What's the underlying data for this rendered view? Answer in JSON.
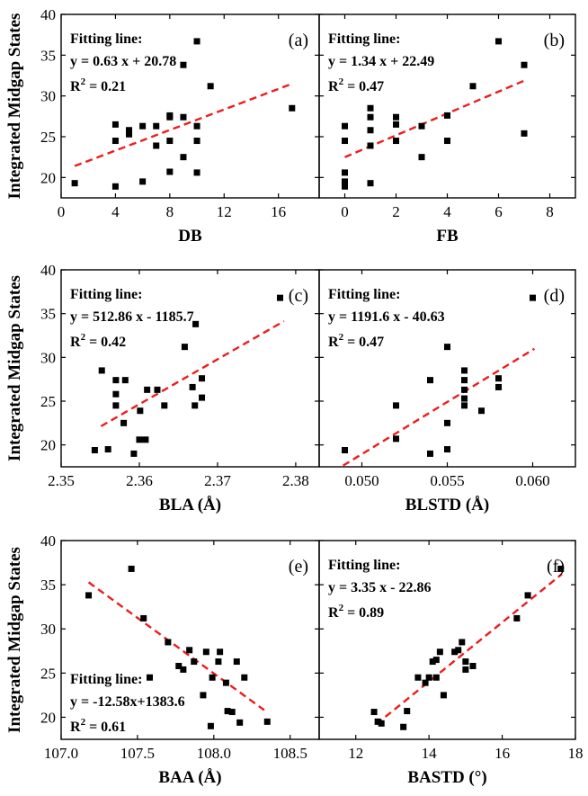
{
  "chart_data": [
    {
      "id": "a",
      "type": "scatter",
      "panel_label": "(a)",
      "xlabel": "DB",
      "xlim": [
        0,
        19
      ],
      "ylim": [
        17.5,
        40
      ],
      "xticks": [
        0,
        4,
        8,
        12,
        16
      ],
      "xtick_labels": [
        "0",
        "4",
        "8",
        "12",
        "16"
      ],
      "yticks": [
        20,
        25,
        30,
        35,
        40
      ],
      "ytick_labels": [
        "20",
        "25",
        "30",
        "35",
        "40"
      ],
      "fit": {
        "title": "Fitting line:",
        "equation": "y = 0.63 x + 20.78",
        "r2_prefix": "R",
        "r2_sup": "2",
        "r2_value": " = 0.21",
        "slope": 0.63,
        "intercept": 20.78,
        "x_range": [
          1,
          17
        ],
        "text_position": "top-left"
      },
      "points": [
        [
          1,
          19.3
        ],
        [
          4,
          18.9
        ],
        [
          4,
          24.5
        ],
        [
          4,
          26.5
        ],
        [
          5,
          25.3
        ],
        [
          5,
          25.8
        ],
        [
          6,
          19.5
        ],
        [
          6,
          26.3
        ],
        [
          7,
          23.9
        ],
        [
          7,
          26.3
        ],
        [
          8,
          20.7
        ],
        [
          8,
          24.5
        ],
        [
          8,
          27.4
        ],
        [
          8,
          27.6
        ],
        [
          9,
          22.5
        ],
        [
          9,
          27.4
        ],
        [
          9,
          33.8
        ],
        [
          10,
          20.6
        ],
        [
          10,
          24.5
        ],
        [
          10,
          26.3
        ],
        [
          10,
          36.7
        ],
        [
          11,
          31.2
        ],
        [
          17,
          28.5
        ]
      ]
    },
    {
      "id": "b",
      "type": "scatter",
      "panel_label": "(b)",
      "xlabel": "FB",
      "xlim": [
        -1,
        9
      ],
      "ylim": [
        17.5,
        40
      ],
      "xticks": [
        0,
        2,
        4,
        6,
        8
      ],
      "xtick_labels": [
        "0",
        "2",
        "4",
        "6",
        "8"
      ],
      "yticks": [
        20,
        25,
        30,
        35,
        40
      ],
      "ytick_labels": [
        "",
        "",
        "",
        "",
        ""
      ],
      "fit": {
        "title": "Fitting line:",
        "equation": "y = 1.34 x + 22.49",
        "r2_prefix": "R",
        "r2_sup": "2",
        "r2_value": " = 0.47",
        "slope": 1.34,
        "intercept": 22.49,
        "x_range": [
          0,
          7
        ],
        "text_position": "top-left"
      },
      "points": [
        [
          0,
          18.9
        ],
        [
          0,
          19.3
        ],
        [
          0,
          19.5
        ],
        [
          0,
          20.6
        ],
        [
          0,
          24.5
        ],
        [
          0,
          26.3
        ],
        [
          1,
          19.3
        ],
        [
          1,
          23.9
        ],
        [
          1,
          25.8
        ],
        [
          1,
          27.4
        ],
        [
          1,
          28.5
        ],
        [
          2,
          24.5
        ],
        [
          2,
          26.5
        ],
        [
          2,
          27.4
        ],
        [
          3,
          22.5
        ],
        [
          3,
          26.3
        ],
        [
          4,
          24.5
        ],
        [
          4,
          27.6
        ],
        [
          5,
          31.2
        ],
        [
          6,
          36.7
        ],
        [
          7,
          25.4
        ],
        [
          7,
          33.8
        ]
      ]
    },
    {
      "id": "c",
      "type": "scatter",
      "panel_label": "(c)",
      "xlabel": "BLA (Å)",
      "xlim": [
        2.35,
        2.383
      ],
      "ylim": [
        17.5,
        40
      ],
      "xticks": [
        2.35,
        2.36,
        2.37,
        2.38
      ],
      "xtick_labels": [
        "2.35",
        "2.36",
        "2.37",
        "2.38"
      ],
      "yticks": [
        20,
        25,
        30,
        35,
        40
      ],
      "ytick_labels": [
        "20",
        "25",
        "30",
        "35",
        "40"
      ],
      "fit": {
        "title": "Fitting line:",
        "equation": "y = 512.86 x - 1185.7",
        "r2_prefix": "R",
        "r2_sup": "2",
        "r2_value": " = 0.42",
        "slope": 512.86,
        "intercept": -1185.7,
        "x_range": [
          2.3551,
          2.3785
        ],
        "text_position": "top-left"
      },
      "points": [
        [
          2.3543,
          19.4
        ],
        [
          2.3552,
          28.5
        ],
        [
          2.356,
          19.5
        ],
        [
          2.357,
          24.5
        ],
        [
          2.357,
          25.8
        ],
        [
          2.357,
          27.4
        ],
        [
          2.358,
          22.5
        ],
        [
          2.3582,
          27.4
        ],
        [
          2.3593,
          19.0
        ],
        [
          2.36,
          20.6
        ],
        [
          2.3601,
          23.9
        ],
        [
          2.3608,
          20.6
        ],
        [
          2.361,
          26.3
        ],
        [
          2.3623,
          26.3
        ],
        [
          2.3632,
          24.5
        ],
        [
          2.3658,
          31.2
        ],
        [
          2.3668,
          26.6
        ],
        [
          2.3671,
          24.5
        ],
        [
          2.3672,
          33.8
        ],
        [
          2.368,
          27.6
        ],
        [
          2.368,
          25.4
        ],
        [
          2.378,
          36.8
        ]
      ]
    },
    {
      "id": "d",
      "type": "scatter",
      "panel_label": "(d)",
      "xlabel": "BLSTD (Å)",
      "xlim": [
        0.0475,
        0.0625
      ],
      "ylim": [
        17.5,
        40
      ],
      "xticks": [
        0.05,
        0.055,
        0.06
      ],
      "xtick_labels": [
        "0.050",
        "0.055",
        "0.060"
      ],
      "yticks": [
        20,
        25,
        30,
        35,
        40
      ],
      "ytick_labels": [
        "",
        "",
        "",
        "",
        ""
      ],
      "fit": {
        "title": "Fitting line:",
        "equation": "y = 1191.6 x - 40.63",
        "r2_prefix": "R",
        "r2_sup": "2",
        "r2_value": " = 0.47",
        "slope": 1191.6,
        "intercept": -40.63,
        "x_range": [
          0.0489,
          0.0601
        ],
        "text_position": "top-left"
      },
      "points": [
        [
          0.049,
          19.4
        ],
        [
          0.052,
          24.5
        ],
        [
          0.052,
          20.7
        ],
        [
          0.054,
          27.4
        ],
        [
          0.054,
          19.0
        ],
        [
          0.055,
          31.2
        ],
        [
          0.055,
          22.5
        ],
        [
          0.055,
          19.5
        ],
        [
          0.056,
          24.5
        ],
        [
          0.056,
          25.3
        ],
        [
          0.056,
          26.3
        ],
        [
          0.056,
          27.4
        ],
        [
          0.056,
          28.5
        ],
        [
          0.057,
          23.9
        ],
        [
          0.058,
          26.6
        ],
        [
          0.058,
          27.6
        ],
        [
          0.06,
          36.8
        ]
      ]
    },
    {
      "id": "e",
      "type": "scatter",
      "panel_label": "(e)",
      "xlabel": "BAA (Å)",
      "xlim": [
        107.0,
        108.69
      ],
      "ylim": [
        17.5,
        40
      ],
      "xticks": [
        107.0,
        107.5,
        108.0,
        108.5
      ],
      "xtick_labels": [
        "107.0",
        "107.5",
        "108.0",
        "108.5"
      ],
      "yticks": [
        20,
        25,
        30,
        35,
        40
      ],
      "ytick_labels": [
        "20",
        "25",
        "30",
        "35",
        "40"
      ],
      "fit": {
        "title": "Fitting line:",
        "equation": "y = -12.58x+1383.6",
        "r2_prefix": "R",
        "r2_sup": "2",
        "r2_value": " = 0.61",
        "slope": -12.58,
        "intercept": 1383.6,
        "x_range": [
          107.18,
          108.33
        ],
        "text_position": "bottom-left"
      },
      "points": [
        [
          107.18,
          33.8
        ],
        [
          107.46,
          36.8
        ],
        [
          107.54,
          31.2
        ],
        [
          107.58,
          24.5
        ],
        [
          107.7,
          28.5
        ],
        [
          107.77,
          25.8
        ],
        [
          107.8,
          25.4
        ],
        [
          107.84,
          27.6
        ],
        [
          107.87,
          26.3
        ],
        [
          107.93,
          22.5
        ],
        [
          107.95,
          27.4
        ],
        [
          107.98,
          19.0
        ],
        [
          107.99,
          24.5
        ],
        [
          108.03,
          26.3
        ],
        [
          108.04,
          27.4
        ],
        [
          108.08,
          23.9
        ],
        [
          108.09,
          20.7
        ],
        [
          108.12,
          20.6
        ],
        [
          108.15,
          26.3
        ],
        [
          108.17,
          19.4
        ],
        [
          108.2,
          24.5
        ],
        [
          108.35,
          19.5
        ]
      ]
    },
    {
      "id": "f",
      "type": "scatter",
      "panel_label": "(f)",
      "xlabel": "BASTD (°)",
      "xlim": [
        11,
        18
      ],
      "ylim": [
        17.5,
        40
      ],
      "xticks": [
        12,
        14,
        16,
        18
      ],
      "xtick_labels": [
        "12",
        "14",
        "16",
        "18"
      ],
      "yticks": [
        20,
        25,
        30,
        35,
        40
      ],
      "ytick_labels": [
        "",
        "",
        "",
        "",
        ""
      ],
      "fit": {
        "title": "Fitting line:",
        "equation": "y = 3.35 x - 22.86",
        "r2_prefix": "R",
        "r2_sup": "2",
        "r2_value": " = 0.89",
        "slope": 3.35,
        "intercept": -22.86,
        "x_range": [
          12.56,
          17.63
        ],
        "text_position": "top-left"
      },
      "points": [
        [
          12.5,
          20.6
        ],
        [
          12.6,
          19.5
        ],
        [
          12.7,
          19.3
        ],
        [
          13.3,
          18.9
        ],
        [
          13.4,
          20.7
        ],
        [
          13.7,
          24.5
        ],
        [
          13.9,
          23.9
        ],
        [
          14.0,
          24.5
        ],
        [
          14.1,
          26.3
        ],
        [
          14.2,
          24.5
        ],
        [
          14.2,
          26.5
        ],
        [
          14.3,
          27.4
        ],
        [
          14.4,
          22.5
        ],
        [
          14.7,
          27.4
        ],
        [
          14.8,
          27.6
        ],
        [
          14.9,
          28.5
        ],
        [
          15.0,
          25.4
        ],
        [
          15.0,
          26.3
        ],
        [
          15.2,
          25.8
        ],
        [
          16.4,
          31.2
        ],
        [
          16.7,
          33.8
        ],
        [
          17.6,
          36.8
        ]
      ]
    }
  ],
  "shared_ylabel": "Integrated Midgap States",
  "colors": {
    "fit_line": "#ee1c1c",
    "points": "#000000",
    "axes": "#000000"
  }
}
